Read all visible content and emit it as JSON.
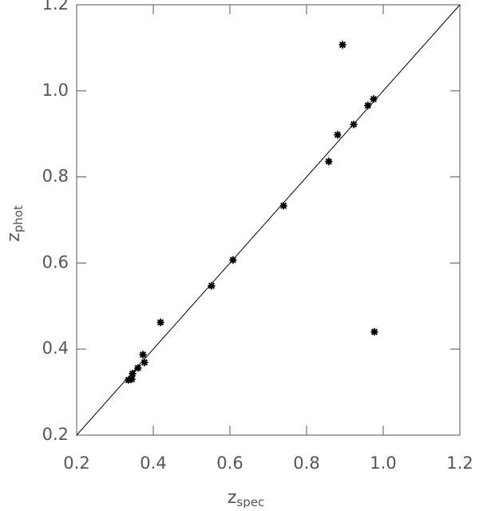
{
  "chart_data": {
    "type": "scatter",
    "xlabel": {
      "main": "z",
      "sub": "spec"
    },
    "ylabel": {
      "main": "z",
      "sub": "phot"
    },
    "x": [
      0.894,
      0.977,
      0.975,
      0.96,
      0.923,
      0.881,
      0.858,
      0.74,
      0.608,
      0.552,
      0.419,
      0.373,
      0.377,
      0.36,
      0.346,
      0.344,
      0.335
    ],
    "values": [
      1.107,
      0.44,
      0.981,
      0.966,
      0.922,
      0.898,
      0.836,
      0.733,
      0.607,
      0.547,
      0.462,
      0.387,
      0.369,
      0.356,
      0.343,
      0.33,
      0.328
    ],
    "errors": [
      0.012,
      0.008,
      0.01,
      0.012,
      0.008,
      0.012,
      0.015,
      0.01,
      0.01,
      0.01,
      0.01,
      0.012,
      0.01,
      0.008,
      0.008,
      0.008,
      0.008
    ],
    "color": "#000000",
    "error_color": "#aaaaaa",
    "identity_line": true,
    "xlim": [
      0.2,
      1.2
    ],
    "ylim": [
      0.2,
      1.2
    ],
    "xticks": [
      0.2,
      0.4,
      0.6,
      0.8,
      {
        "value": 1,
        "label": "1.0"
      },
      1.2
    ],
    "yticks": [
      0.2,
      0.4,
      0.6,
      0.8,
      {
        "value": 1,
        "label": "1.0"
      },
      1.2
    ]
  }
}
